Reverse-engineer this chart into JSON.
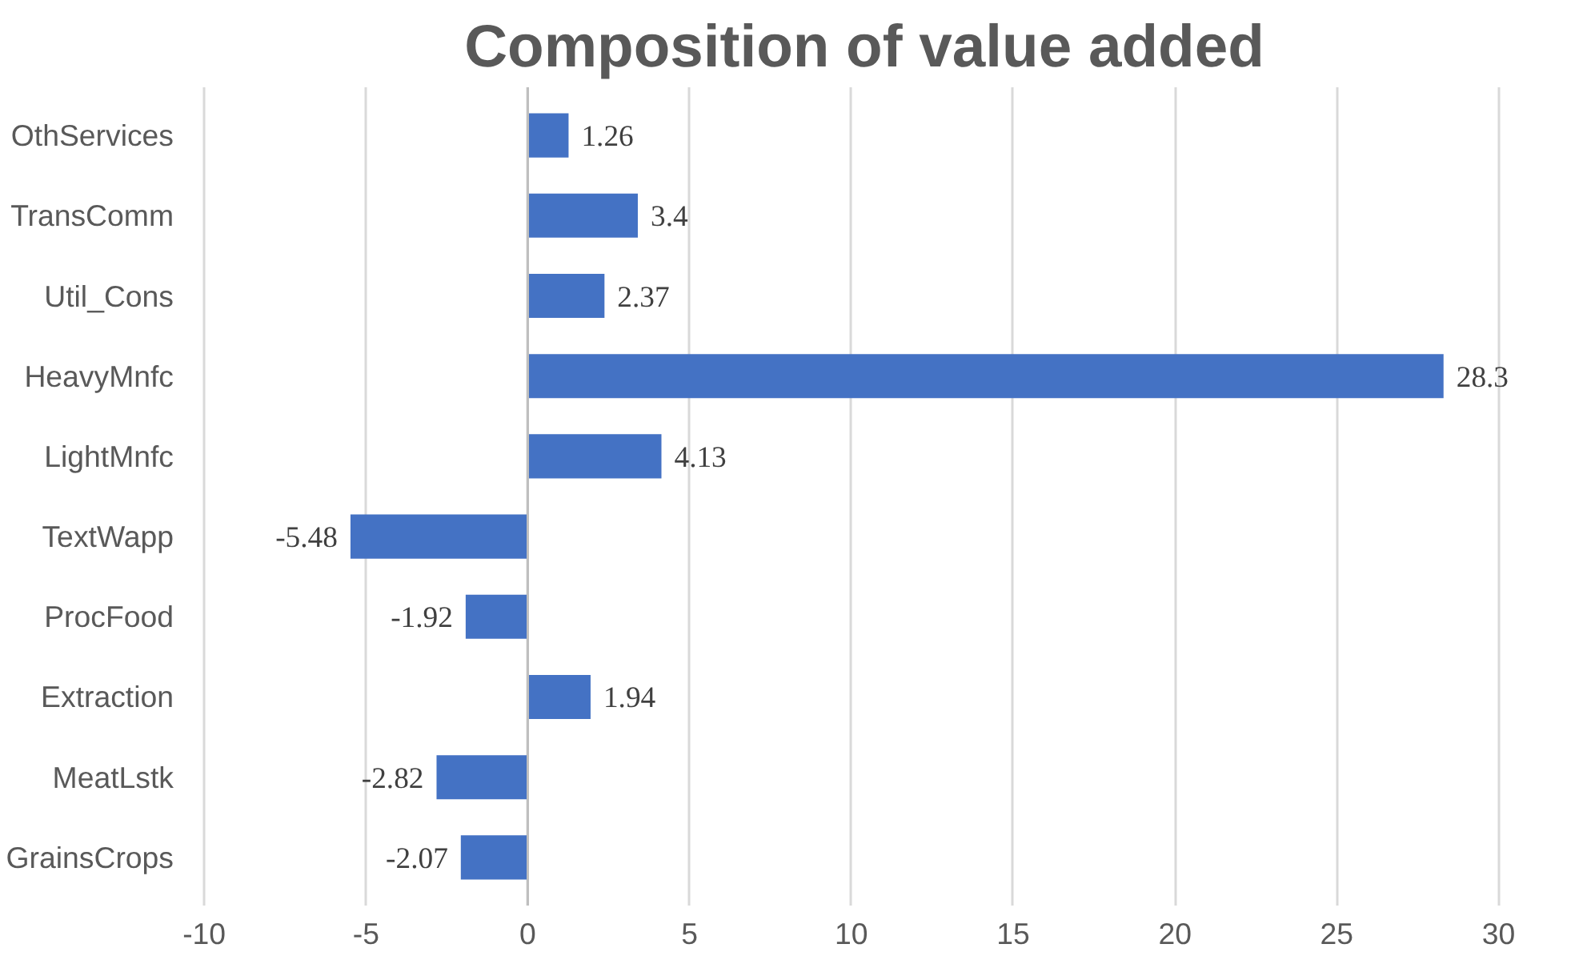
{
  "chart_data": {
    "type": "bar",
    "orientation": "horizontal",
    "title": "Composition of value added",
    "categories": [
      "OthServices",
      "TransComm",
      "Util_Cons",
      "HeavyMnfc",
      "LightMnfc",
      "TextWapp",
      "ProcFood",
      "Extraction",
      "MeatLstk",
      "GrainsCrops"
    ],
    "values": [
      1.26,
      3.4,
      2.37,
      28.3,
      4.13,
      -5.48,
      -1.92,
      1.94,
      -2.82,
      -2.07
    ],
    "color": "#4472c4",
    "xlim": [
      -10,
      30
    ],
    "xticks": [
      -10,
      -5,
      0,
      5,
      10,
      15,
      20,
      25,
      30
    ],
    "grid": "x",
    "data_labels": true
  }
}
